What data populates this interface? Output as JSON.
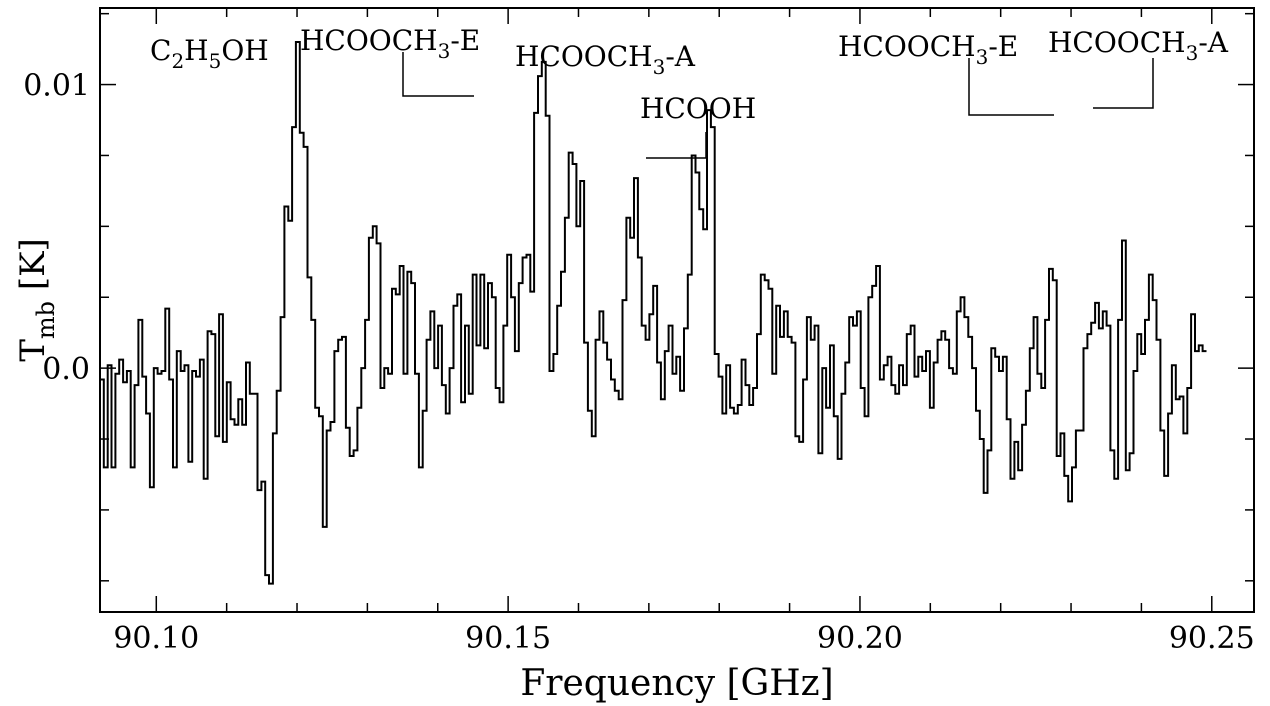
{
  "chart_data": {
    "type": "line",
    "style": "step",
    "xlabel": "Frequency [GHz]",
    "ylabel": {
      "main": "T",
      "sub": "mb",
      "unit": " [K]"
    },
    "xlim": [
      90.092,
      90.256
    ],
    "ylim": [
      -0.0086,
      0.0127
    ],
    "xticks_major": [
      90.1,
      90.15,
      90.2,
      90.25
    ],
    "xtick_labels": [
      "90.10",
      "90.15",
      "90.20",
      "90.25"
    ],
    "yticks_major": [
      0.0,
      0.01
    ],
    "ytick_labels": [
      "0.0",
      "0.01"
    ],
    "line_color": "#000000",
    "series": [
      {
        "x0": 90.092,
        "dx": 0.000546,
        "values": [
          -0.0004,
          -0.0035,
          0.0001,
          -0.0035,
          -0.0002,
          0.0003,
          -0.0005,
          -0.0001,
          -0.0035,
          -0.0006,
          0.0017,
          -0.0003,
          -0.0016,
          -0.0042,
          0.0,
          -0.0002,
          -0.0001,
          0.0021,
          -0.0004,
          -0.0035,
          0.0006,
          -0.0001,
          0.0001,
          -0.0033,
          -0.0001,
          -0.0003,
          0.0003,
          -0.0039,
          0.0013,
          0.0012,
          -0.0024,
          0.0019,
          -0.0026,
          -0.0005,
          -0.0018,
          -0.002,
          -0.0011,
          -0.002,
          0.0002,
          -0.0009,
          -0.0009,
          -0.0043,
          -0.004,
          -0.0073,
          -0.0076,
          -0.0023,
          -0.0008,
          0.0018,
          0.0057,
          0.0052,
          0.0085,
          0.0115,
          0.0083,
          0.0078,
          0.0032,
          0.0017,
          -0.0014,
          -0.0017,
          -0.0056,
          -0.0022,
          -0.0019,
          0.0006,
          0.001,
          0.0011,
          -0.0021,
          -0.0031,
          -0.0029,
          -0.0014,
          0.0,
          0.0017,
          0.0046,
          0.005,
          0.0044,
          -0.0007,
          0.0,
          -0.0002,
          0.0028,
          0.0026,
          0.0036,
          -0.0002,
          0.0034,
          0.003,
          -0.0002,
          -0.0035,
          -0.0015,
          0.001,
          0.002,
          0.0,
          0.0015,
          -0.0006,
          -0.0016,
          0.0,
          0.0022,
          0.0026,
          -0.0012,
          0.0015,
          -0.0009,
          0.0033,
          0.0008,
          0.0033,
          0.0007,
          0.003,
          0.0025,
          -0.0007,
          -0.0012,
          0.0015,
          0.004,
          0.0025,
          0.0006,
          0.003,
          0.0039,
          0.004,
          0.0027,
          0.009,
          0.0103,
          0.0108,
          0.0089,
          -0.0001,
          0.0005,
          0.0022,
          0.0034,
          0.0053,
          0.0076,
          0.0072,
          0.005,
          0.0066,
          0.0009,
          -0.0015,
          -0.0024,
          0.001,
          0.002,
          0.0009,
          0.0003,
          -0.0004,
          -0.0008,
          -0.0011,
          0.0024,
          0.0053,
          0.0046,
          0.0067,
          0.0039,
          0.0015,
          0.001,
          0.0019,
          0.0029,
          0.0002,
          -0.0011,
          0.0006,
          0.0015,
          -0.0002,
          0.0004,
          -0.0008,
          0.0014,
          0.0033,
          0.0075,
          0.0069,
          0.0056,
          0.0049,
          0.0091,
          0.0085,
          0.0005,
          -0.0003,
          -0.0016,
          0.0001,
          -0.0014,
          -0.0016,
          -0.0013,
          0.0003,
          -0.0006,
          -0.0013,
          -0.0007,
          0.0012,
          0.0033,
          0.0031,
          0.0028,
          -0.0002,
          0.0022,
          0.0011,
          0.002,
          0.0011,
          0.0009,
          -0.0024,
          -0.0026,
          -0.0004,
          0.0018,
          0.001,
          0.0015,
          -0.003,
          0.0,
          -0.0014,
          0.0008,
          -0.0017,
          -0.0032,
          -0.0009,
          0.0002,
          0.0018,
          0.0015,
          0.002,
          -0.0007,
          -0.0017,
          0.0025,
          0.0029,
          0.0036,
          -0.0004,
          0.0001,
          0.0004,
          -0.0006,
          -0.0009,
          0.0001,
          -0.0006,
          0.0012,
          0.0015,
          -0.0003,
          0.0004,
          -0.0001,
          0.0006,
          -0.0014,
          0.0002,
          0.001,
          0.0013,
          0.001,
          0.0,
          -0.0002,
          0.002,
          0.0025,
          0.0018,
          0.0011,
          0.0,
          -0.0015,
          -0.0025,
          -0.0044,
          -0.0029,
          0.0007,
          0.0004,
          -0.0001,
          0.0004,
          -0.0018,
          -0.0039,
          -0.0026,
          -0.0036,
          -0.002,
          -0.0008,
          0.0007,
          0.0018,
          -0.0002,
          -0.0007,
          0.0017,
          0.0035,
          0.0031,
          -0.0031,
          -0.0023,
          -0.0038,
          -0.0047,
          -0.0035,
          -0.0022,
          -0.0022,
          0.0007,
          0.0012,
          0.0016,
          0.0023,
          0.0014,
          0.002,
          0.0015,
          -0.0029,
          -0.0039,
          0.0017,
          0.0045,
          -0.0036,
          -0.003,
          -0.0001,
          0.0012,
          0.0005,
          0.0017,
          0.0033,
          0.0024,
          0.001,
          -0.0022,
          -0.0038,
          -0.0016,
          0.0001,
          -0.0011,
          -0.001,
          -0.0023,
          -0.0007,
          0.0019,
          0.0006,
          0.0008,
          0.0006
        ]
      }
    ],
    "annotations": [
      {
        "label": "C",
        "parts": [
          [
            "C",
            ""
          ],
          [
            "2",
            "sub"
          ],
          [
            "H",
            ""
          ],
          [
            "5",
            "sub"
          ],
          [
            "OH",
            ""
          ]
        ],
        "connector": false
      },
      {
        "label": "HCOOCH3-E",
        "parts": [
          [
            "HCOOCH",
            ""
          ],
          [
            "3",
            "sub"
          ],
          [
            "-E",
            ""
          ]
        ],
        "connector": true
      },
      {
        "label": "HCOOCH3-A",
        "parts": [
          [
            "HCOOCH",
            ""
          ],
          [
            "3",
            "sub"
          ],
          [
            "-A",
            ""
          ]
        ],
        "connector": false
      },
      {
        "label": "HCOOH",
        "parts": [
          [
            "HCOOH",
            ""
          ]
        ],
        "connector": true
      },
      {
        "label": "HCOOCH3-E",
        "parts": [
          [
            "HCOOCH",
            ""
          ],
          [
            "3",
            "sub"
          ],
          [
            "-E",
            ""
          ]
        ],
        "connector": true
      },
      {
        "label": "HCOOCH3-A",
        "parts": [
          [
            "HCOOCH",
            ""
          ],
          [
            "3",
            "sub"
          ],
          [
            "-A",
            ""
          ]
        ],
        "connector": true
      }
    ]
  }
}
